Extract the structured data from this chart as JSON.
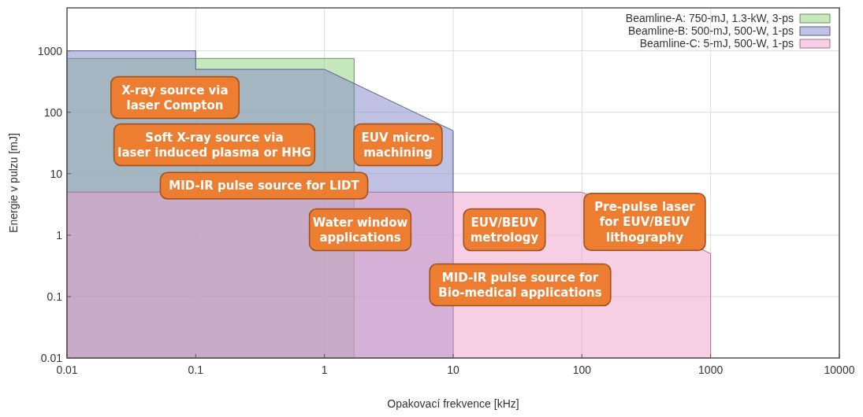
{
  "chart_data": {
    "type": "area",
    "xlabel": "Opakovací frekvence [kHz]",
    "ylabel": "Energie v pulzu [mJ]",
    "log": "xy",
    "xlim": [
      0.01,
      10000
    ],
    "xticks": [
      0.01,
      0.1,
      1,
      10,
      100,
      1000,
      10000
    ],
    "ylim": [
      0.01,
      5000
    ],
    "yticks": [
      0.01,
      0.1,
      1,
      10,
      100,
      1000
    ],
    "grid": true,
    "legend": "top right",
    "series": [
      {
        "name": "Beamline-A: 750-mJ, 1.3-kW, 3-ps",
        "color": "#8fd07a",
        "x": [
          0.01,
          1.7,
          1.7
        ],
        "values": [
          750,
          750,
          0.01
        ]
      },
      {
        "name": "Beamline-B: 500-mJ, 500-W, 1-ps",
        "color": "#7f86c8",
        "x": [
          0.01,
          0.1,
          0.1,
          1,
          10,
          10
        ],
        "values": [
          1000,
          1000,
          500,
          500,
          50,
          0.01
        ]
      },
      {
        "name": "Beamline-C: 5-mJ, 500-W, 1-ps",
        "color": "#ee9fcb",
        "x": [
          0.01,
          100,
          1000,
          1000
        ],
        "values": [
          5,
          5,
          0.5,
          0.01
        ]
      }
    ],
    "annotations": [
      "X-ray source via\nlaser Compton",
      "Soft X-ray source via\nlaser induced plasma or HHG",
      "EUV micro-\nmachining",
      "MID-IR pulse source for LIDT",
      "Water window\napplications",
      "EUV/BEUV\nmetrology",
      "Pre-pulse laser\nfor EUV/BEUV\nlithography",
      "MID-IR pulse source for\nBio-medical applications"
    ]
  }
}
